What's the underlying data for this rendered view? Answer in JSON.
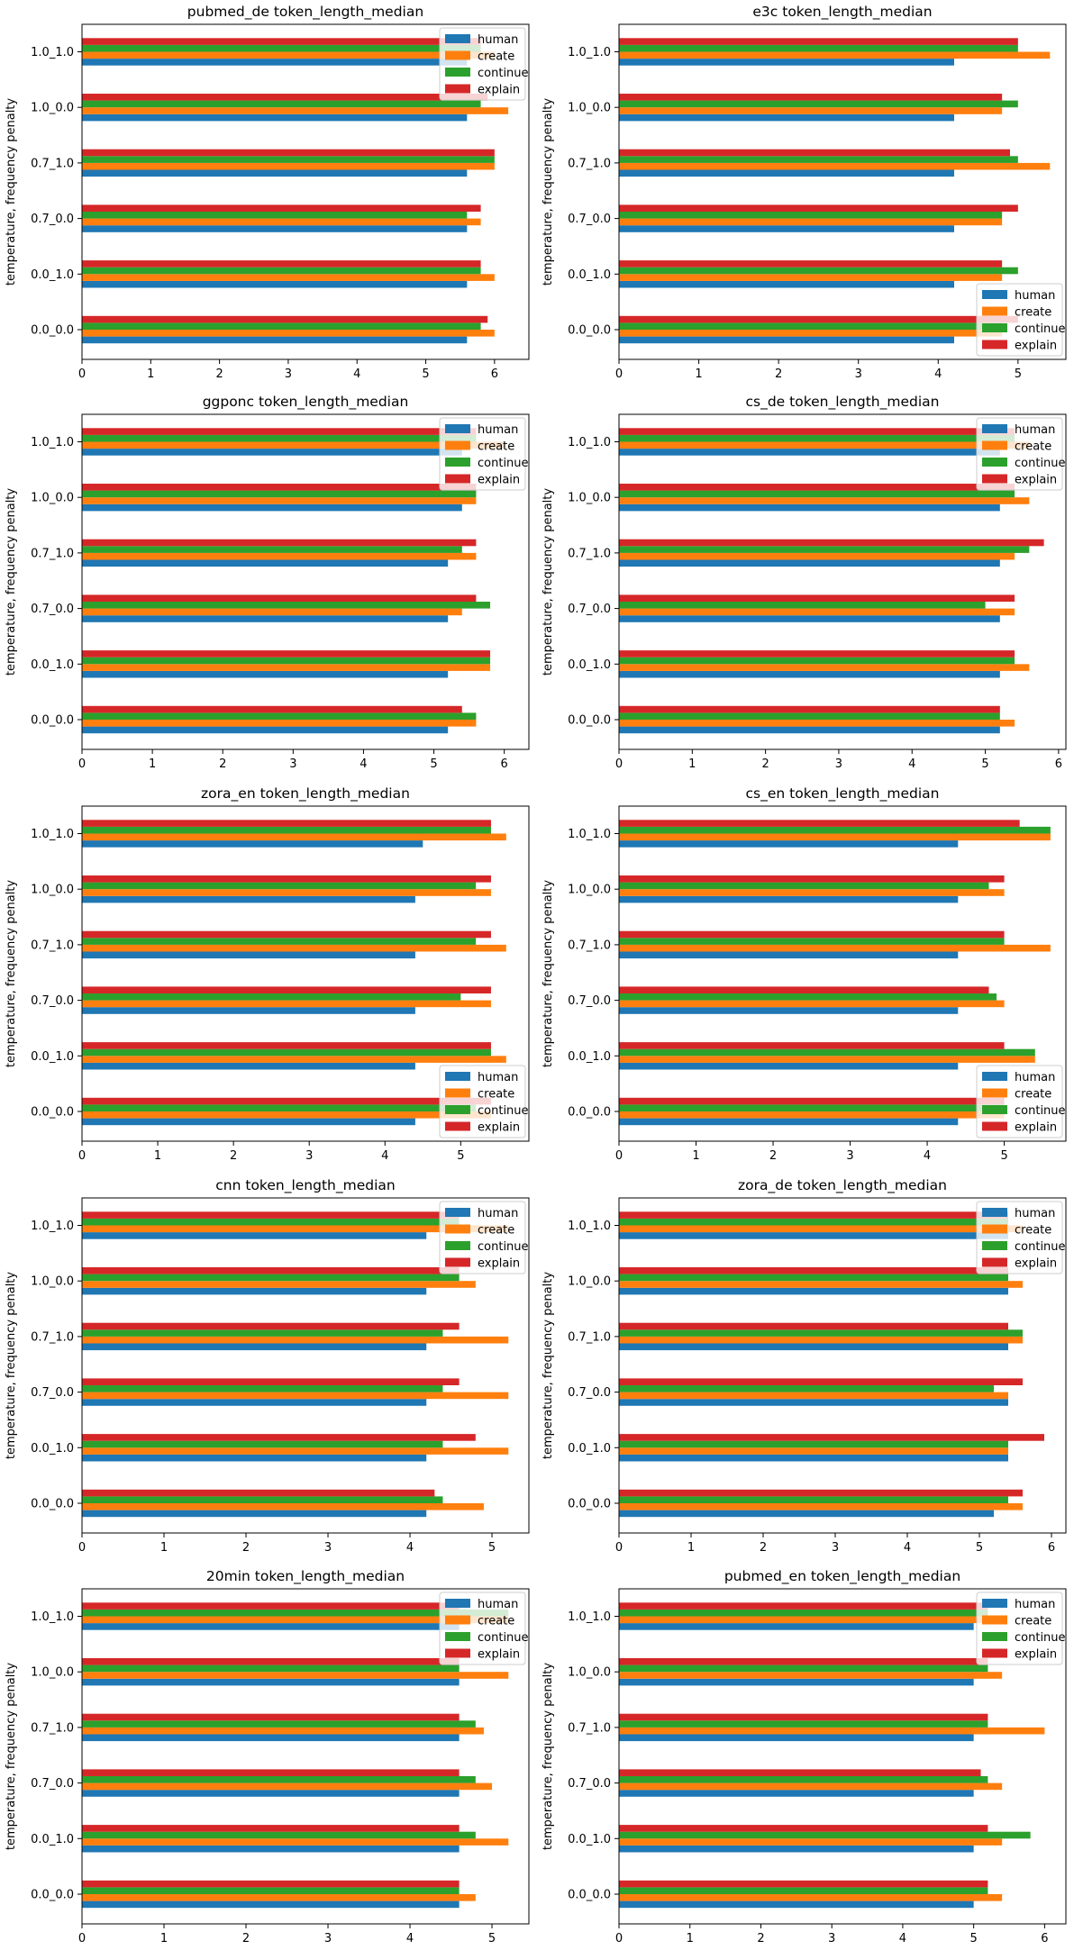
{
  "series_names": [
    "human",
    "create",
    "continue",
    "explain"
  ],
  "colors": {
    "human": "#1f77b4",
    "create": "#ff7f0e",
    "continue": "#2ca02c",
    "explain": "#d62728"
  },
  "chart_data": [
    {
      "type": "bar",
      "orientation": "horizontal",
      "title": "pubmed_de token_length_median",
      "ylabel": "temperature, frequency penalty",
      "categories": [
        "0.0_0.0",
        "0.0_1.0",
        "0.7_0.0",
        "0.7_1.0",
        "1.0_0.0",
        "1.0_1.0"
      ],
      "xlim": [
        0,
        6.5
      ],
      "xticks": [
        0,
        1,
        2,
        3,
        4,
        5,
        6
      ],
      "legend": "top-right",
      "series": [
        {
          "name": "human",
          "values": [
            5.6,
            5.6,
            5.6,
            5.6,
            5.6,
            5.6
          ]
        },
        {
          "name": "create",
          "values": [
            6.0,
            6.0,
            5.8,
            6.0,
            6.2,
            6.0
          ]
        },
        {
          "name": "continue",
          "values": [
            5.8,
            5.8,
            5.6,
            6.0,
            5.8,
            5.8
          ]
        },
        {
          "name": "explain",
          "values": [
            5.9,
            5.8,
            5.8,
            6.0,
            5.9,
            5.8
          ]
        }
      ]
    },
    {
      "type": "bar",
      "orientation": "horizontal",
      "title": "e3c token_length_median",
      "ylabel": "temperature, frequency penalty",
      "categories": [
        "0.0_0.0",
        "0.0_1.0",
        "0.7_0.0",
        "0.7_1.0",
        "1.0_0.0",
        "1.0_1.0"
      ],
      "xlim": [
        0,
        5.6
      ],
      "xticks": [
        0,
        1,
        2,
        3,
        4,
        5
      ],
      "legend": "lower-right",
      "series": [
        {
          "name": "human",
          "values": [
            4.2,
            4.2,
            4.2,
            4.2,
            4.2,
            4.2
          ]
        },
        {
          "name": "create",
          "values": [
            4.8,
            4.8,
            4.8,
            5.4,
            4.8,
            5.4
          ]
        },
        {
          "name": "continue",
          "values": [
            4.8,
            5.0,
            4.8,
            5.0,
            5.0,
            5.0
          ]
        },
        {
          "name": "explain",
          "values": [
            5.0,
            4.8,
            5.0,
            4.9,
            4.8,
            5.0
          ]
        }
      ]
    },
    {
      "type": "bar",
      "orientation": "horizontal",
      "title": "ggponc token_length_median",
      "ylabel": "temperature, frequency penalty",
      "categories": [
        "0.0_0.0",
        "0.0_1.0",
        "0.7_0.0",
        "0.7_1.0",
        "1.0_0.0",
        "1.0_1.0"
      ],
      "xlim": [
        0,
        6.35
      ],
      "xticks": [
        0,
        1,
        2,
        3,
        4,
        5,
        6
      ],
      "legend": "top-right",
      "series": [
        {
          "name": "human",
          "values": [
            5.2,
            5.2,
            5.2,
            5.2,
            5.4,
            5.4
          ]
        },
        {
          "name": "create",
          "values": [
            5.6,
            5.8,
            5.4,
            5.6,
            5.6,
            6.0
          ]
        },
        {
          "name": "continue",
          "values": [
            5.6,
            5.8,
            5.8,
            5.4,
            5.6,
            5.6
          ]
        },
        {
          "name": "explain",
          "values": [
            5.4,
            5.8,
            5.6,
            5.6,
            5.6,
            5.6
          ]
        }
      ]
    },
    {
      "type": "bar",
      "orientation": "horizontal",
      "title": "cs_de token_length_median",
      "ylabel": "temperature, frequency penalty",
      "categories": [
        "0.0_0.0",
        "0.0_1.0",
        "0.7_0.0",
        "0.7_1.0",
        "1.0_0.0",
        "1.0_1.0"
      ],
      "xlim": [
        0,
        6.1
      ],
      "xticks": [
        0,
        1,
        2,
        3,
        4,
        5,
        6
      ],
      "legend": "top-right",
      "series": [
        {
          "name": "human",
          "values": [
            5.2,
            5.2,
            5.2,
            5.2,
            5.2,
            5.2
          ]
        },
        {
          "name": "create",
          "values": [
            5.4,
            5.6,
            5.4,
            5.4,
            5.6,
            5.6
          ]
        },
        {
          "name": "continue",
          "values": [
            5.2,
            5.4,
            5.0,
            5.6,
            5.4,
            5.4
          ]
        },
        {
          "name": "explain",
          "values": [
            5.2,
            5.4,
            5.4,
            5.8,
            5.4,
            5.4
          ]
        }
      ]
    },
    {
      "type": "bar",
      "orientation": "horizontal",
      "title": "zora_en token_length_median",
      "ylabel": "temperature, frequency penalty",
      "categories": [
        "0.0_0.0",
        "0.0_1.0",
        "0.7_0.0",
        "0.7_1.0",
        "1.0_0.0",
        "1.0_1.0"
      ],
      "xlim": [
        0,
        5.9
      ],
      "xticks": [
        0,
        1,
        2,
        3,
        4,
        5
      ],
      "legend": "lower-right",
      "series": [
        {
          "name": "human",
          "values": [
            4.4,
            4.4,
            4.4,
            4.4,
            4.4,
            4.5
          ]
        },
        {
          "name": "create",
          "values": [
            5.4,
            5.6,
            5.4,
            5.6,
            5.4,
            5.6
          ]
        },
        {
          "name": "continue",
          "values": [
            5.2,
            5.4,
            5.0,
            5.2,
            5.2,
            5.4
          ]
        },
        {
          "name": "explain",
          "values": [
            5.4,
            5.4,
            5.4,
            5.4,
            5.4,
            5.4
          ]
        }
      ]
    },
    {
      "type": "bar",
      "orientation": "horizontal",
      "title": "cs_en token_length_median",
      "ylabel": "temperature, frequency penalty",
      "categories": [
        "0.0_0.0",
        "0.0_1.0",
        "0.7_0.0",
        "0.7_1.0",
        "1.0_0.0",
        "1.0_1.0"
      ],
      "xlim": [
        0,
        5.8
      ],
      "xticks": [
        0,
        1,
        2,
        3,
        4,
        5
      ],
      "legend": "lower-right",
      "series": [
        {
          "name": "human",
          "values": [
            4.4,
            4.4,
            4.4,
            4.4,
            4.4,
            4.4
          ]
        },
        {
          "name": "create",
          "values": [
            5.0,
            5.4,
            5.0,
            5.6,
            5.0,
            5.6
          ]
        },
        {
          "name": "continue",
          "values": [
            5.0,
            5.4,
            4.9,
            5.0,
            4.8,
            5.6
          ]
        },
        {
          "name": "explain",
          "values": [
            5.0,
            5.0,
            4.8,
            5.0,
            5.0,
            5.2
          ]
        }
      ]
    },
    {
      "type": "bar",
      "orientation": "horizontal",
      "title": "cnn token_length_median",
      "ylabel": "temperature, frequency penalty",
      "categories": [
        "0.0_0.0",
        "0.0_1.0",
        "0.7_0.0",
        "0.7_1.0",
        "1.0_0.0",
        "1.0_1.0"
      ],
      "xlim": [
        0,
        5.45
      ],
      "xticks": [
        0,
        1,
        2,
        3,
        4,
        5
      ],
      "legend": "top-right",
      "series": [
        {
          "name": "human",
          "values": [
            4.2,
            4.2,
            4.2,
            4.2,
            4.2,
            4.2
          ]
        },
        {
          "name": "create",
          "values": [
            4.9,
            5.2,
            5.2,
            5.2,
            4.8,
            5.2
          ]
        },
        {
          "name": "continue",
          "values": [
            4.4,
            4.4,
            4.4,
            4.4,
            4.6,
            4.6
          ]
        },
        {
          "name": "explain",
          "values": [
            4.3,
            4.8,
            4.6,
            4.6,
            4.6,
            4.6
          ]
        }
      ]
    },
    {
      "type": "bar",
      "orientation": "horizontal",
      "title": "zora_de token_length_median",
      "ylabel": "temperature, frequency penalty",
      "categories": [
        "0.0_0.0",
        "0.0_1.0",
        "0.7_0.0",
        "0.7_1.0",
        "1.0_0.0",
        "1.0_1.0"
      ],
      "xlim": [
        0,
        6.2
      ],
      "xticks": [
        0,
        1,
        2,
        3,
        4,
        5,
        6
      ],
      "legend": "top-right",
      "series": [
        {
          "name": "human",
          "values": [
            5.2,
            5.4,
            5.4,
            5.4,
            5.4,
            5.4
          ]
        },
        {
          "name": "create",
          "values": [
            5.6,
            5.4,
            5.4,
            5.6,
            5.6,
            5.6
          ]
        },
        {
          "name": "continue",
          "values": [
            5.4,
            5.4,
            5.2,
            5.6,
            5.4,
            5.4
          ]
        },
        {
          "name": "explain",
          "values": [
            5.6,
            5.9,
            5.6,
            5.4,
            5.4,
            5.4
          ]
        }
      ]
    },
    {
      "type": "bar",
      "orientation": "horizontal",
      "title": "20min token_length_median",
      "ylabel": "temperature, frequency penalty",
      "categories": [
        "0.0_0.0",
        "0.0_1.0",
        "0.7_0.0",
        "0.7_1.0",
        "1.0_0.0",
        "1.0_1.0"
      ],
      "xlim": [
        0,
        5.45
      ],
      "xticks": [
        0,
        1,
        2,
        3,
        4,
        5
      ],
      "legend": "top-right",
      "series": [
        {
          "name": "human",
          "values": [
            4.6,
            4.6,
            4.6,
            4.6,
            4.6,
            4.6
          ]
        },
        {
          "name": "create",
          "values": [
            4.8,
            5.2,
            5.0,
            4.9,
            5.2,
            5.2
          ]
        },
        {
          "name": "continue",
          "values": [
            4.6,
            4.8,
            4.8,
            4.8,
            4.6,
            5.2
          ]
        },
        {
          "name": "explain",
          "values": [
            4.6,
            4.6,
            4.6,
            4.6,
            4.6,
            4.6
          ]
        }
      ]
    },
    {
      "type": "bar",
      "orientation": "horizontal",
      "title": "pubmed_en token_length_median",
      "ylabel": "temperature, frequency penalty",
      "categories": [
        "0.0_0.0",
        "0.0_1.0",
        "0.7_0.0",
        "0.7_1.0",
        "1.0_0.0",
        "1.0_1.0"
      ],
      "xlim": [
        0,
        6.3
      ],
      "xticks": [
        0,
        1,
        2,
        3,
        4,
        5,
        6
      ],
      "legend": "top-right",
      "series": [
        {
          "name": "human",
          "values": [
            5.0,
            5.0,
            5.0,
            5.0,
            5.0,
            5.0
          ]
        },
        {
          "name": "create",
          "values": [
            5.4,
            5.4,
            5.4,
            6.0,
            5.4,
            5.4
          ]
        },
        {
          "name": "continue",
          "values": [
            5.2,
            5.8,
            5.2,
            5.2,
            5.2,
            5.2
          ]
        },
        {
          "name": "explain",
          "values": [
            5.2,
            5.2,
            5.1,
            5.2,
            5.2,
            5.2
          ]
        }
      ]
    }
  ]
}
